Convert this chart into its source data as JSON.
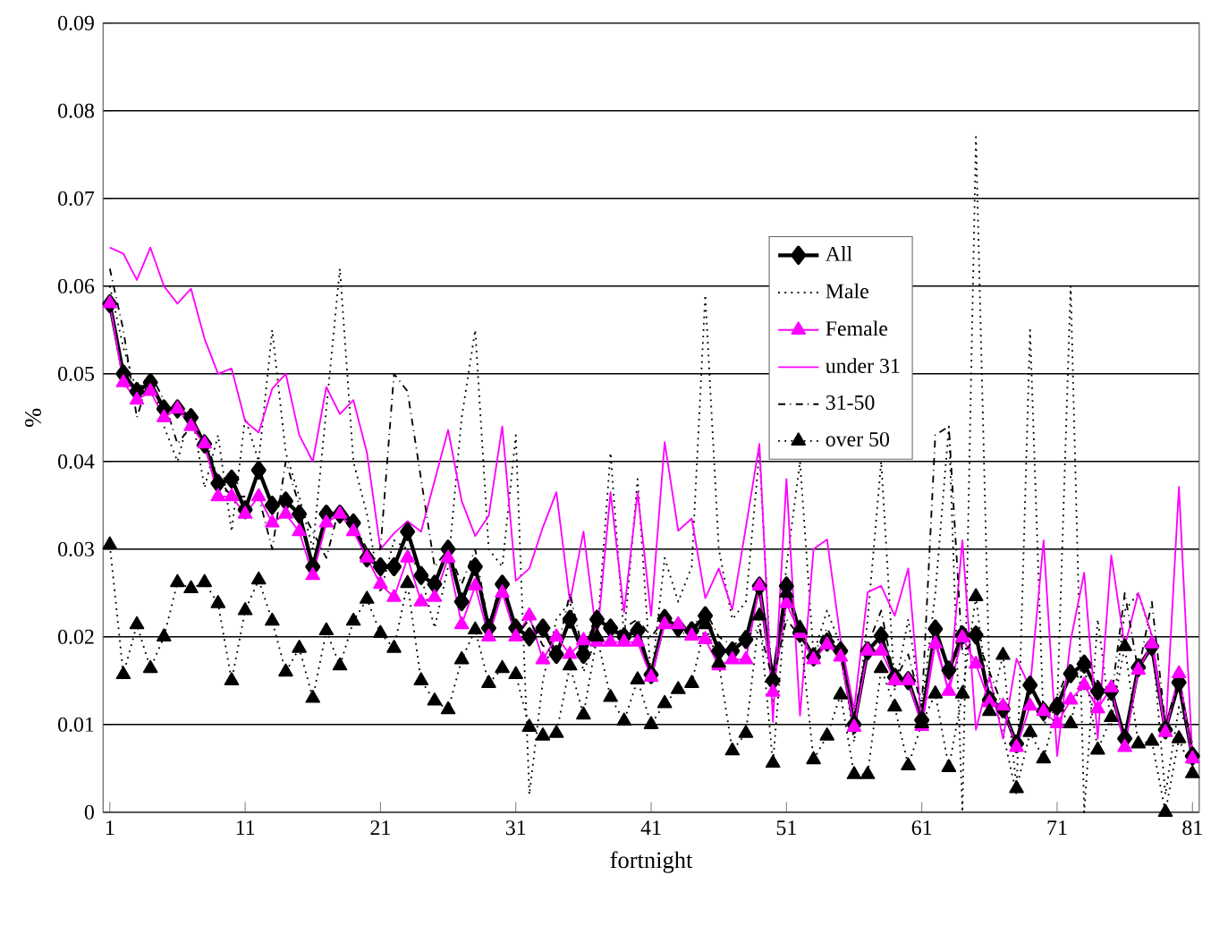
{
  "chart_data": {
    "type": "line",
    "xlabel": "fortnight",
    "ylabel": "%",
    "x": [
      1,
      2,
      3,
      4,
      5,
      6,
      7,
      8,
      9,
      10,
      11,
      12,
      13,
      14,
      15,
      16,
      17,
      18,
      19,
      20,
      21,
      22,
      23,
      24,
      25,
      26,
      27,
      28,
      29,
      30,
      31,
      32,
      33,
      34,
      35,
      36,
      37,
      38,
      39,
      40,
      41,
      42,
      43,
      44,
      45,
      46,
      47,
      48,
      49,
      50,
      51,
      52,
      53,
      54,
      55,
      56,
      57,
      58,
      59,
      60,
      61,
      62,
      63,
      64,
      65,
      66,
      67,
      68,
      69,
      70,
      71,
      72,
      73,
      74,
      75,
      76,
      77,
      78,
      79,
      80,
      81
    ],
    "xlim": [
      0.5,
      81.5
    ],
    "xticks": [
      1,
      11,
      21,
      31,
      41,
      51,
      61,
      71,
      81
    ],
    "ylim": [
      0,
      0.09
    ],
    "yticks": [
      0,
      0.01,
      0.02,
      0.03,
      0.04,
      0.05,
      0.06,
      0.07,
      0.08,
      0.09
    ],
    "grid": "y",
    "legend": "right",
    "series": [
      {
        "name": "All",
        "color": "#000000",
        "marker": "diamond",
        "line_style": "solid",
        "values": [
          0.058,
          0.05,
          0.048,
          0.049,
          0.046,
          0.046,
          0.045,
          0.042,
          0.0375,
          0.038,
          0.0345,
          0.039,
          0.035,
          0.0355,
          0.034,
          0.028,
          0.034,
          0.034,
          0.033,
          0.029,
          0.028,
          0.028,
          0.032,
          0.027,
          0.026,
          0.03,
          0.024,
          0.028,
          0.021,
          0.026,
          0.021,
          0.02,
          0.021,
          0.018,
          0.022,
          0.018,
          0.022,
          0.021,
          0.02,
          0.0207,
          0.0157,
          0.0221,
          0.0211,
          0.0207,
          0.0224,
          0.0184,
          0.0184,
          0.0197,
          0.0258,
          0.015,
          0.0258,
          0.0204,
          0.0177,
          0.0194,
          0.0184,
          0.01,
          0.0184,
          0.0201,
          0.0154,
          0.015,
          0.0105,
          0.0209,
          0.0162,
          0.0202,
          0.0202,
          0.0128,
          0.0118,
          0.0078,
          0.0145,
          0.0115,
          0.0121,
          0.0158,
          0.0169,
          0.0138,
          0.0138,
          0.0084,
          0.0165,
          0.0189,
          0.0094,
          0.0148,
          0.0064
        ]
      },
      {
        "name": "Male",
        "color": "#000000",
        "marker": "none",
        "line_style": "dotted",
        "values": [
          0.06,
          0.053,
          0.048,
          0.05,
          0.044,
          0.04,
          0.046,
          0.037,
          0.043,
          0.032,
          0.045,
          0.04,
          0.055,
          0.041,
          0.036,
          0.03,
          0.046,
          0.062,
          0.04,
          0.034,
          0.025,
          0.031,
          0.03,
          0.027,
          0.021,
          0.028,
          0.045,
          0.055,
          0.03,
          0.028,
          0.043,
          0.002,
          0.015,
          0.022,
          0.024,
          0.016,
          0.02,
          0.041,
          0.02,
          0.038,
          0.015,
          0.029,
          0.024,
          0.028,
          0.059,
          0.03,
          0.022,
          0.024,
          0.041,
          0.012,
          0.028,
          0.04,
          0.018,
          0.023,
          0.019,
          0.008,
          0.022,
          0.04,
          0.014,
          0.022,
          0.012,
          0.025,
          0.044,
          0.0,
          0.077,
          0.015,
          0.009,
          0.002,
          0.055,
          0.01,
          0.012,
          0.06,
          0.0,
          0.022,
          0.01,
          0.023,
          0.025,
          0.02,
          0.002,
          0.012,
          0.008
        ]
      },
      {
        "name": "Female",
        "color": "#ff00ff",
        "marker": "triangle",
        "line_style": "solid",
        "values": [
          0.058,
          0.049,
          0.047,
          0.048,
          0.045,
          0.046,
          0.044,
          0.042,
          0.036,
          0.036,
          0.034,
          0.036,
          0.033,
          0.034,
          0.032,
          0.027,
          0.033,
          0.034,
          0.032,
          0.029,
          0.026,
          0.0245,
          0.029,
          0.024,
          0.0245,
          0.029,
          0.0214,
          0.0258,
          0.02,
          0.025,
          0.02,
          0.0224,
          0.0174,
          0.02,
          0.018,
          0.0196,
          0.0194,
          0.0194,
          0.0194,
          0.0194,
          0.0154,
          0.0214,
          0.0214,
          0.0201,
          0.0197,
          0.0167,
          0.0174,
          0.0174,
          0.0258,
          0.0137,
          0.0238,
          0.0204,
          0.0174,
          0.0191,
          0.0177,
          0.0097,
          0.0184,
          0.0184,
          0.015,
          0.015,
          0.0098,
          0.0192,
          0.0138,
          0.0199,
          0.0169,
          0.0125,
          0.0121,
          0.0074,
          0.0121,
          0.0115,
          0.0101,
          0.0128,
          0.0145,
          0.0118,
          0.0142,
          0.0074,
          0.0162,
          0.0192,
          0.0091,
          0.0158,
          0.0061
        ]
      },
      {
        "name": "under 31",
        "color": "#ff00ff",
        "marker": "none",
        "line_style": "solid",
        "values": [
          0.0644,
          0.0637,
          0.0607,
          0.0644,
          0.06,
          0.058,
          0.0597,
          0.054,
          0.05,
          0.0506,
          0.0446,
          0.0433,
          0.0483,
          0.05,
          0.043,
          0.04,
          0.0485,
          0.0454,
          0.047,
          0.041,
          0.03,
          0.0318,
          0.0332,
          0.032,
          0.0378,
          0.0436,
          0.0355,
          0.0315,
          0.0338,
          0.044,
          0.0264,
          0.0278,
          0.0325,
          0.0365,
          0.024,
          0.032,
          0.0197,
          0.0365,
          0.0228,
          0.0365,
          0.0224,
          0.0422,
          0.0321,
          0.0335,
          0.0244,
          0.0278,
          0.0231,
          0.0325,
          0.042,
          0.0103,
          0.038,
          0.011,
          0.03,
          0.0311,
          0.0197,
          0.0117,
          0.0251,
          0.0258,
          0.0224,
          0.0278,
          0.0098,
          0.0199,
          0.0135,
          0.031,
          0.0094,
          0.0155,
          0.0084,
          0.0175,
          0.0142,
          0.031,
          0.0064,
          0.0196,
          0.0273,
          0.0084,
          0.0293,
          0.0189,
          0.025,
          0.0202,
          0.0088,
          0.0371,
          0.0061
        ]
      },
      {
        "name": "31-50",
        "color": "#000000",
        "marker": "none",
        "line_style": "dashdot",
        "values": [
          0.062,
          0.055,
          0.045,
          0.05,
          0.047,
          0.042,
          0.044,
          0.043,
          0.038,
          0.036,
          0.036,
          0.036,
          0.03,
          0.04,
          0.035,
          0.032,
          0.029,
          0.035,
          0.033,
          0.03,
          0.03,
          0.05,
          0.048,
          0.038,
          0.028,
          0.03,
          0.026,
          0.03,
          0.021,
          0.027,
          0.02,
          0.022,
          0.019,
          0.018,
          0.025,
          0.018,
          0.023,
          0.02,
          0.021,
          0.022,
          0.02,
          0.022,
          0.02,
          0.021,
          0.023,
          0.02,
          0.019,
          0.02,
          0.021,
          0.015,
          0.022,
          0.02,
          0.018,
          0.021,
          0.018,
          0.011,
          0.019,
          0.023,
          0.015,
          0.018,
          0.012,
          0.043,
          0.044,
          0.018,
          0.02,
          0.016,
          0.012,
          0.008,
          0.015,
          0.011,
          0.013,
          0.017,
          0.014,
          0.015,
          0.013,
          0.025,
          0.016,
          0.024,
          0.01,
          0.015,
          0.007
        ]
      },
      {
        "name": "over 50",
        "color": "#000000",
        "marker": "triangle",
        "line_style": "dotted",
        "values": [
          0.0305,
          0.0157,
          0.0214,
          0.0164,
          0.02,
          0.0262,
          0.0255,
          0.0262,
          0.0238,
          0.015,
          0.023,
          0.0265,
          0.0218,
          0.016,
          0.0187,
          0.013,
          0.0207,
          0.0167,
          0.0218,
          0.0243,
          0.0204,
          0.0187,
          0.0261,
          0.015,
          0.0127,
          0.0117,
          0.0174,
          0.0208,
          0.0147,
          0.0164,
          0.0157,
          0.0097,
          0.0087,
          0.009,
          0.0167,
          0.0111,
          0.02,
          0.0131,
          0.0104,
          0.0151,
          0.01,
          0.0124,
          0.014,
          0.0147,
          0.0214,
          0.017,
          0.007,
          0.009,
          0.0224,
          0.0056,
          0.025,
          0.021,
          0.006,
          0.0087,
          0.0134,
          0.0043,
          0.0043,
          0.0164,
          0.012,
          0.0053,
          0.0101,
          0.0135,
          0.0051,
          0.0135,
          0.0246,
          0.0115,
          0.0179,
          0.0027,
          0.0091,
          0.0061,
          0.012,
          0.0101,
          0.0169,
          0.0071,
          0.0108,
          0.0189,
          0.0078,
          0.0081,
          0.0,
          0.0084,
          0.0044
        ]
      }
    ]
  }
}
